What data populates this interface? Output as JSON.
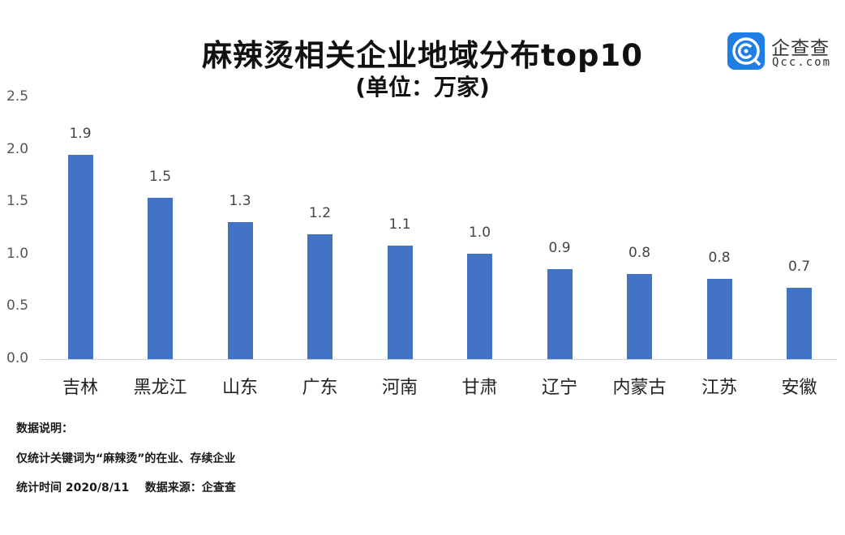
{
  "header": {
    "title": "麻辣烫相关企业地域分布top10",
    "subtitle": "(单位：万家)"
  },
  "logo": {
    "name": "企查查",
    "url": "Qcc.com",
    "brand_color": "#1e7ee6"
  },
  "notes": {
    "heading": "数据说明：",
    "line1": "仅统计关键词为“麻辣烫”的在业、存续企业",
    "line2": "统计时间 2020/8/11    数据来源：企查查"
  },
  "chart_data": {
    "type": "bar",
    "title": "麻辣烫相关企业地域分布top10",
    "subtitle": "(单位：万家)",
    "xlabel": "",
    "ylabel": "万家",
    "ylim": [
      0,
      2.5
    ],
    "yticks": [
      "0.0",
      "0.5",
      "1.0",
      "1.5",
      "2.0",
      "2.5"
    ],
    "grid": false,
    "legend": null,
    "bar_color": "#4472c4",
    "categories": [
      "吉林",
      "黑龙江",
      "山东",
      "广东",
      "河南",
      "甘肃",
      "辽宁",
      "内蒙古",
      "江苏",
      "安徽"
    ],
    "values": [
      1.95,
      1.54,
      1.31,
      1.19,
      1.08,
      1.01,
      0.86,
      0.81,
      0.77,
      0.68
    ],
    "data_labels": [
      "1.9",
      "1.5",
      "1.3",
      "1.2",
      "1.1",
      "1.0",
      "0.9",
      "0.8",
      "0.8",
      "0.7"
    ]
  }
}
